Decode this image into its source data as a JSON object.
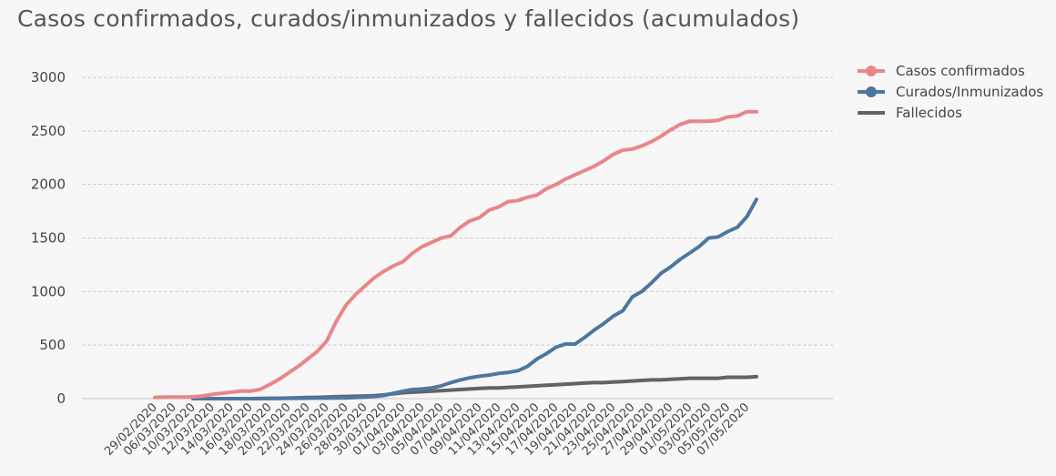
{
  "chart_data": {
    "type": "line",
    "title": "Casos confirmados, curados/inmunizados y fallecidos (acumulados)",
    "xlabel": "",
    "ylabel": "",
    "ylim": [
      0,
      3000
    ],
    "yticks": [
      0,
      500,
      1000,
      1500,
      2000,
      2500,
      3000
    ],
    "grid": true,
    "legend_position": "right",
    "x_tick_labels": [
      "29/02/2020",
      "06/03/2020",
      "10/03/2020",
      "12/03/2020",
      "14/03/2020",
      "16/03/2020",
      "18/03/2020",
      "20/03/2020",
      "22/03/2020",
      "24/03/2020",
      "26/03/2020",
      "28/03/2020",
      "30/03/2020",
      "01/04/2020",
      "03/04/2020",
      "05/04/2020",
      "07/04/2020",
      "09/04/2020",
      "11/04/2020",
      "13/04/2020",
      "15/04/2020",
      "17/04/2020",
      "19/04/2020",
      "21/04/2020",
      "23/04/2020",
      "25/04/2020",
      "27/04/2020",
      "29/04/2020",
      "01/05/2020",
      "03/05/2020",
      "05/05/2020",
      "07/05/2020"
    ],
    "series": [
      {
        "name": "Casos confirmados",
        "color": "#e8868a",
        "values": [
          10,
          15,
          15,
          15,
          17,
          25,
          40,
          50,
          60,
          70,
          70,
          85,
          130,
          180,
          240,
          300,
          370,
          440,
          537,
          720,
          870,
          970,
          1050,
          1130,
          1190,
          1240,
          1280,
          1360,
          1420,
          1460,
          1500,
          1520,
          1600,
          1660,
          1690,
          1760,
          1790,
          1840,
          1850,
          1880,
          1900,
          1960,
          2000,
          2050,
          2090,
          2130,
          2170,
          2220,
          2280,
          2320,
          2330,
          2360,
          2400,
          2450,
          2510,
          2560,
          2590,
          2590,
          2590,
          2600,
          2630,
          2640,
          2680,
          2680
        ]
      },
      {
        "name": "Curados/Inmunizados",
        "color": "#4e77a0",
        "values": [
          null,
          null,
          null,
          null,
          0,
          0,
          0,
          0,
          0,
          0,
          0,
          1,
          2,
          2,
          3,
          3,
          4,
          5,
          5,
          6,
          8,
          10,
          15,
          20,
          30,
          50,
          70,
          85,
          90,
          100,
          120,
          150,
          175,
          195,
          210,
          220,
          235,
          245,
          260,
          300,
          370,
          420,
          480,
          510,
          510,
          570,
          640,
          700,
          770,
          820,
          950,
          1000,
          1080,
          1170,
          1230,
          1300,
          1360,
          1420,
          1500,
          1510,
          1560,
          1600,
          1700,
          1860
        ]
      },
      {
        "name": "Fallecidos",
        "color": "#636363",
        "values": [
          null,
          null,
          null,
          null,
          0,
          0,
          0,
          0,
          0,
          0,
          0,
          1,
          2,
          3,
          5,
          8,
          10,
          12,
          15,
          18,
          20,
          22,
          25,
          28,
          35,
          45,
          55,
          60,
          65,
          70,
          75,
          80,
          85,
          90,
          95,
          100,
          100,
          105,
          110,
          115,
          120,
          125,
          130,
          135,
          140,
          145,
          150,
          150,
          155,
          160,
          165,
          170,
          175,
          175,
          180,
          185,
          190,
          190,
          190,
          190,
          200,
          200,
          200,
          205
        ]
      }
    ]
  }
}
